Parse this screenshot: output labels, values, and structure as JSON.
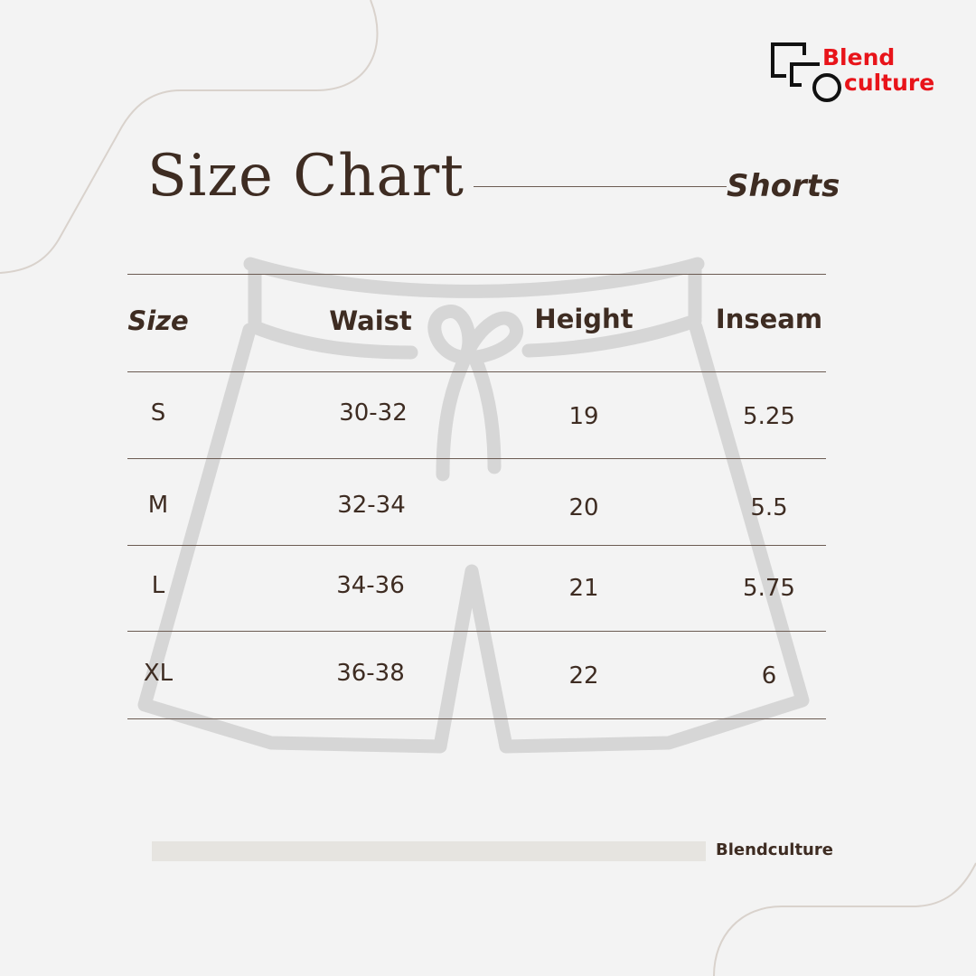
{
  "brand": {
    "logo_line1": "Blend",
    "logo_line2": "culture",
    "footer": "Blendculture",
    "accent_color": "#e8141a"
  },
  "title": "Size Chart",
  "subtitle": "Shorts",
  "table": {
    "headers": [
      "Size",
      "Waist",
      "Height",
      "Inseam"
    ],
    "rows": [
      [
        "S",
        "30-32",
        "19",
        "5.25"
      ],
      [
        "M",
        "32-34",
        "20",
        "5.5"
      ],
      [
        "L",
        "34-36",
        "21",
        "5.75"
      ],
      [
        "XL",
        "36-38",
        "22",
        "6"
      ]
    ]
  },
  "colors": {
    "background": "#f3f3f3",
    "text": "#3e2c22",
    "illustration": "#d6d6d6"
  },
  "illustration": "shorts-outline-icon"
}
